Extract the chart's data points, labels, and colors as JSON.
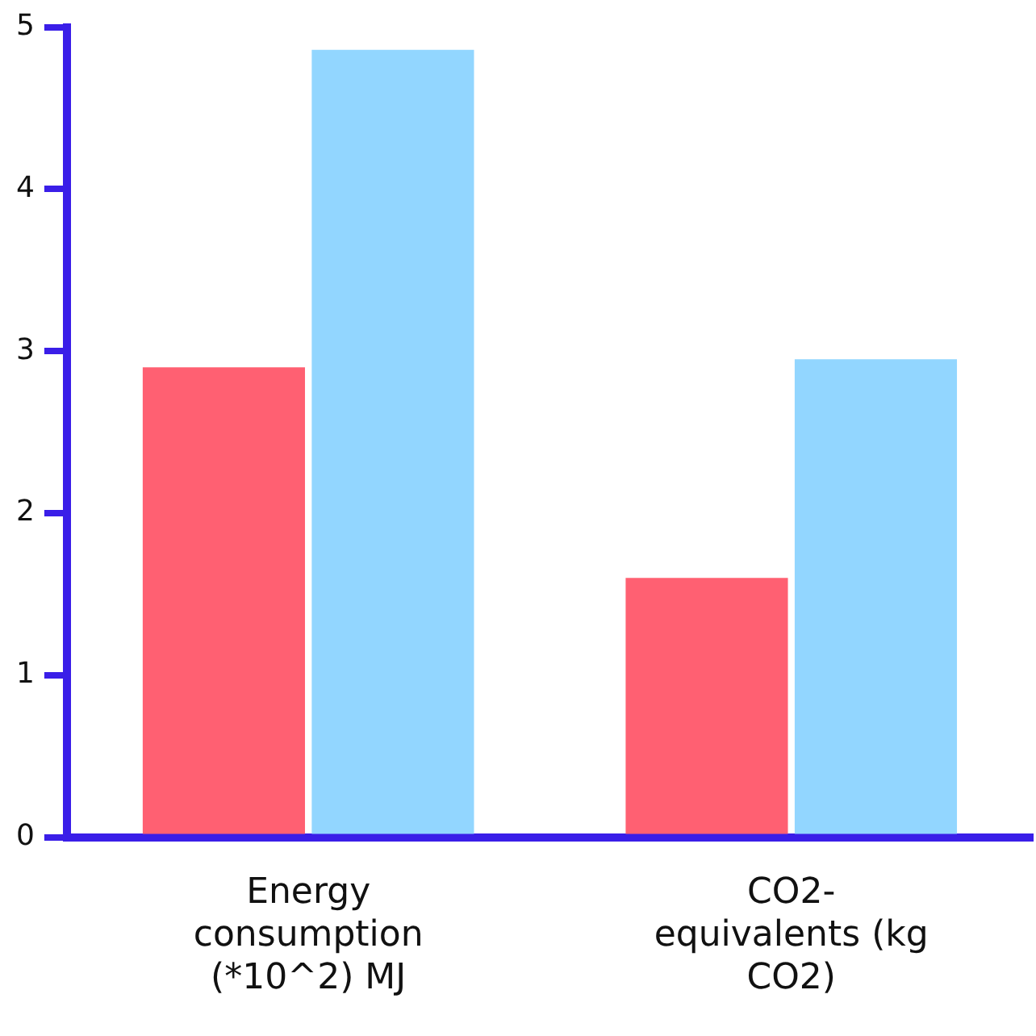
{
  "chart_data": {
    "type": "bar",
    "categories": [
      "Energy consumption (*10^2) MJ",
      "CO2-equivalents (kg CO2)"
    ],
    "series": [
      {
        "color": "#ff6072",
        "values": [
          2.9,
          1.6
        ]
      },
      {
        "color": "#92d6ff",
        "values": [
          4.86,
          2.95
        ]
      }
    ],
    "ylim": [
      0,
      5
    ],
    "yticks": [
      0,
      1,
      2,
      3,
      4,
      5
    ],
    "grid": false,
    "legend": false
  }
}
